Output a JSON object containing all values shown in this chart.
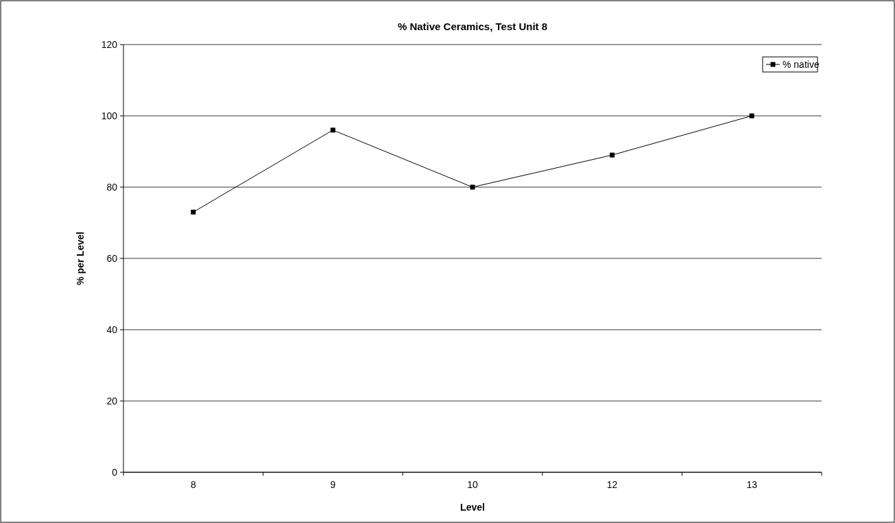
{
  "chart_data": {
    "type": "line",
    "title": "% Native Ceramics, Test Unit 8",
    "xlabel": "Level",
    "ylabel": "% per Level",
    "categories": [
      "8",
      "9",
      "10",
      "12",
      "13"
    ],
    "series": [
      {
        "name": "% native",
        "color": "#000000",
        "values": [
          73,
          96,
          80,
          89,
          100
        ]
      }
    ],
    "ylim": [
      0,
      120
    ],
    "yticks": [
      0,
      20,
      40,
      60,
      80,
      100,
      120
    ],
    "grid": "y",
    "legend": "top right",
    "marker": "square",
    "line_style": "solid"
  }
}
